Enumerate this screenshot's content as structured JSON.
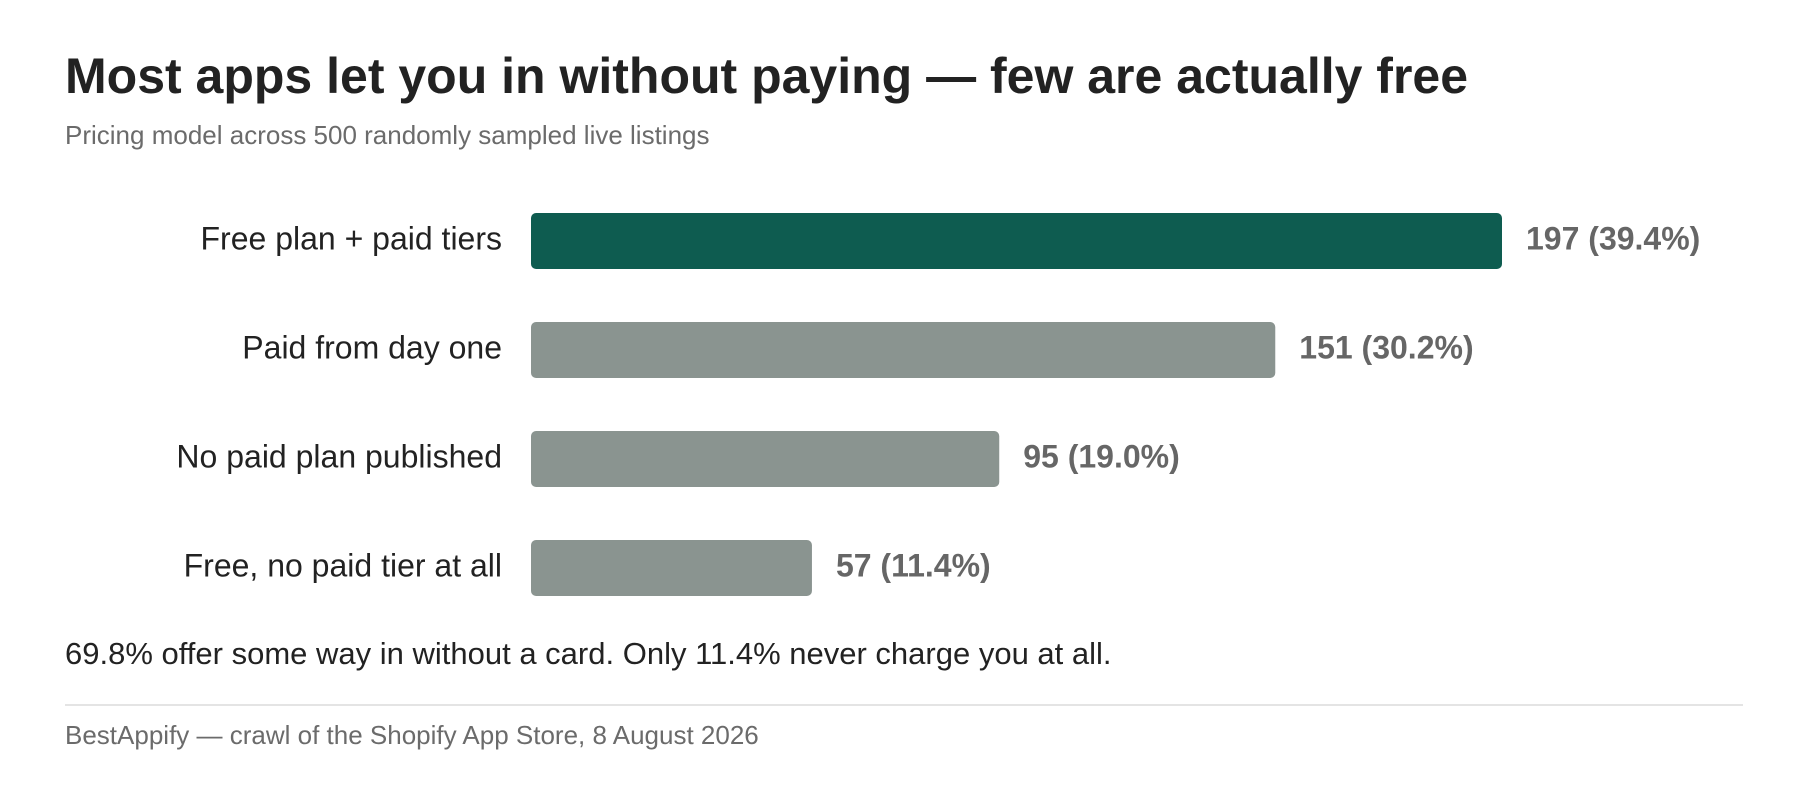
{
  "chart_data": {
    "type": "bar",
    "orientation": "horizontal",
    "title": "Most apps let you in without paying — few are actually free",
    "subtitle": "Pricing model across 500 randomly sampled live listings",
    "categories": [
      "Free plan + paid tiers",
      "Paid from day one",
      "No paid plan published",
      "Free, no paid tier at all"
    ],
    "values": [
      197,
      151,
      95,
      57
    ],
    "value_labels": [
      "197 (39.4%)",
      "151 (30.2%)",
      "95 (19.0%)",
      "57 (11.4%)"
    ],
    "colors": [
      "#0e5c50",
      "#8a9490",
      "#8a9490",
      "#8a9490"
    ],
    "annotation": "69.8% offer some way in without a card. Only 11.4% never charge you at all.",
    "source": "BestAppify — crawl of the Shopify App Store, 8 August 2026"
  }
}
